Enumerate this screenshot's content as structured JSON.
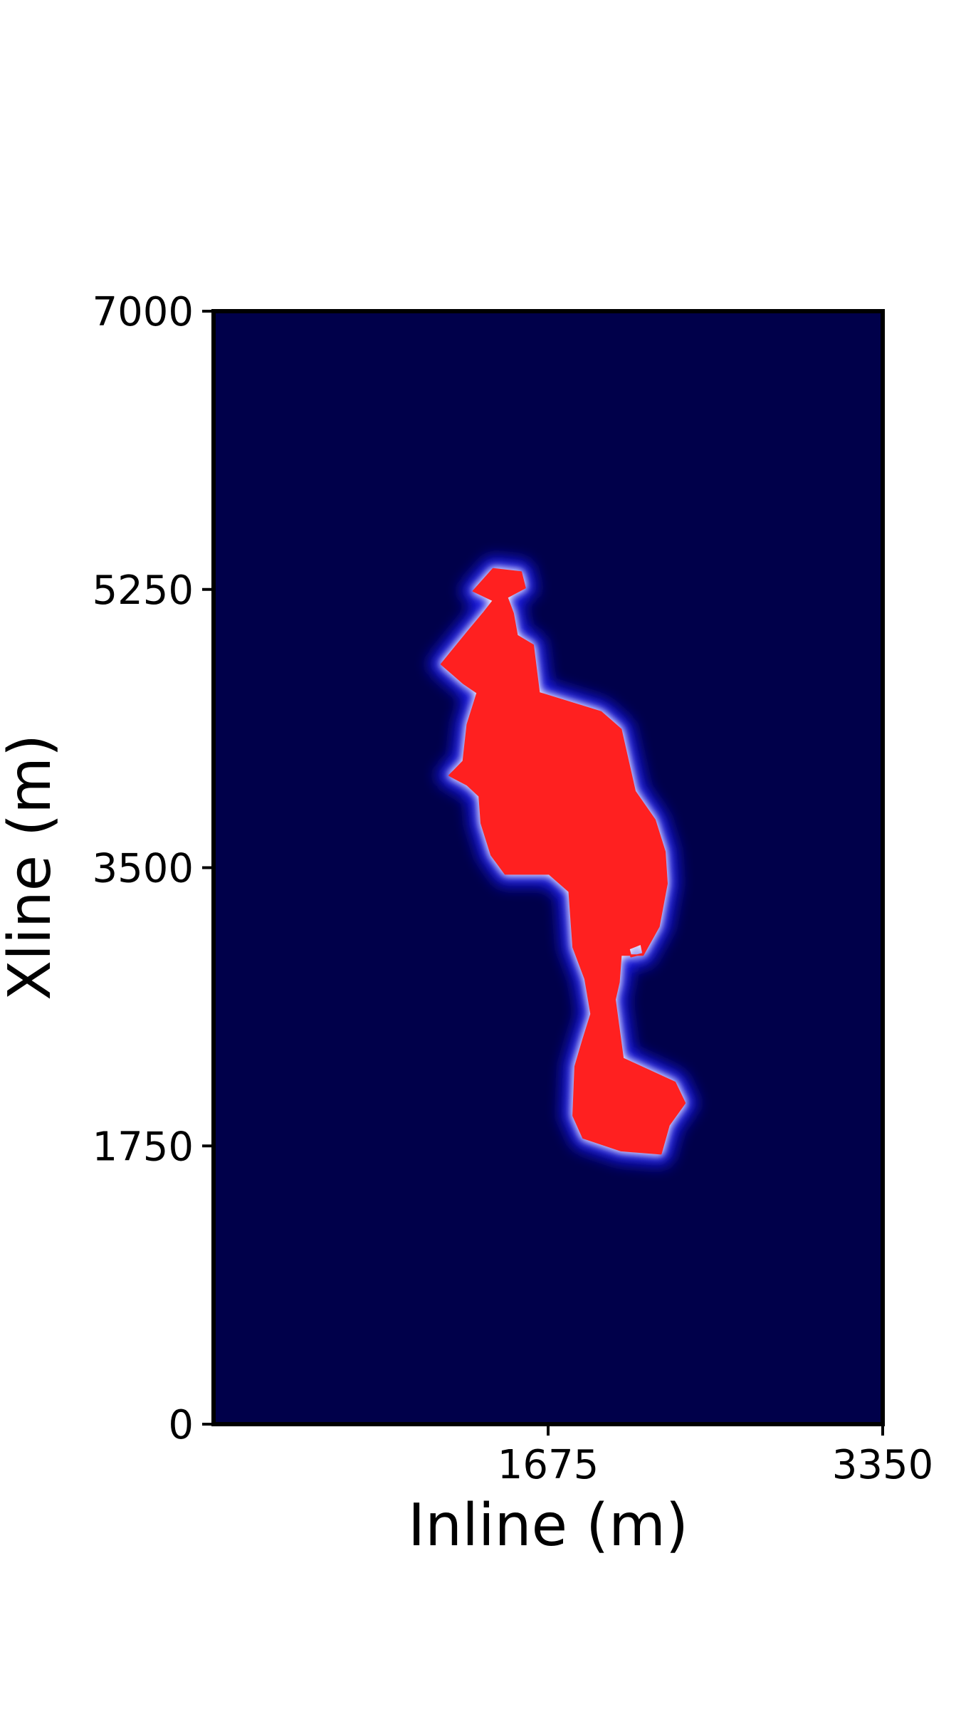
{
  "chart_data": {
    "type": "heatmap",
    "xlabel": "Inline (m)",
    "ylabel": "Xline (m)",
    "xlim": [
      0,
      3350
    ],
    "ylim": [
      0,
      7000
    ],
    "xticks": [
      1675,
      3350
    ],
    "xtick_labels": [
      "1675",
      "3350"
    ],
    "yticks": [
      0,
      1750,
      3500,
      5250,
      7000
    ],
    "ytick_labels": [
      "0",
      "1750",
      "3500",
      "5250",
      "7000"
    ],
    "background_color": "#00004a",
    "anomaly_color": "#ff2020",
    "edge_color": "#1a1aff",
    "grid": false,
    "colorbar": false,
    "anomaly_outline_xy": [
      [
        1400,
        5380
      ],
      [
        1540,
        5360
      ],
      [
        1560,
        5260
      ],
      [
        1470,
        5200
      ],
      [
        1500,
        5100
      ],
      [
        1520,
        4960
      ],
      [
        1600,
        4900
      ],
      [
        1630,
        4600
      ],
      [
        1940,
        4480
      ],
      [
        2040,
        4370
      ],
      [
        2110,
        3980
      ],
      [
        2210,
        3800
      ],
      [
        2260,
        3600
      ],
      [
        2270,
        3400
      ],
      [
        2230,
        3130
      ],
      [
        2150,
        2950
      ],
      [
        2040,
        2950
      ],
      [
        2030,
        2780
      ],
      [
        2010,
        2670
      ],
      [
        2050,
        2300
      ],
      [
        2310,
        2150
      ],
      [
        2360,
        2020
      ],
      [
        2280,
        1880
      ],
      [
        2240,
        1700
      ],
      [
        2040,
        1720
      ],
      [
        1850,
        1800
      ],
      [
        1800,
        1940
      ],
      [
        1810,
        2250
      ],
      [
        1850,
        2420
      ],
      [
        1890,
        2580
      ],
      [
        1860,
        2800
      ],
      [
        1800,
        3000
      ],
      [
        1780,
        3350
      ],
      [
        1680,
        3460
      ],
      [
        1460,
        3460
      ],
      [
        1390,
        3580
      ],
      [
        1340,
        3780
      ],
      [
        1330,
        3950
      ],
      [
        1270,
        4020
      ],
      [
        1180,
        4080
      ],
      [
        1250,
        4170
      ],
      [
        1270,
        4400
      ],
      [
        1320,
        4600
      ],
      [
        1250,
        4660
      ],
      [
        1140,
        4780
      ],
      [
        1270,
        4980
      ],
      [
        1350,
        5100
      ],
      [
        1400,
        5180
      ],
      [
        1300,
        5240
      ]
    ],
    "anomaly_holes_xy": [
      [
        [
          2080,
          2990
        ],
        [
          2140,
          3020
        ],
        [
          2150,
          2960
        ],
        [
          2090,
          2940
        ]
      ]
    ]
  }
}
